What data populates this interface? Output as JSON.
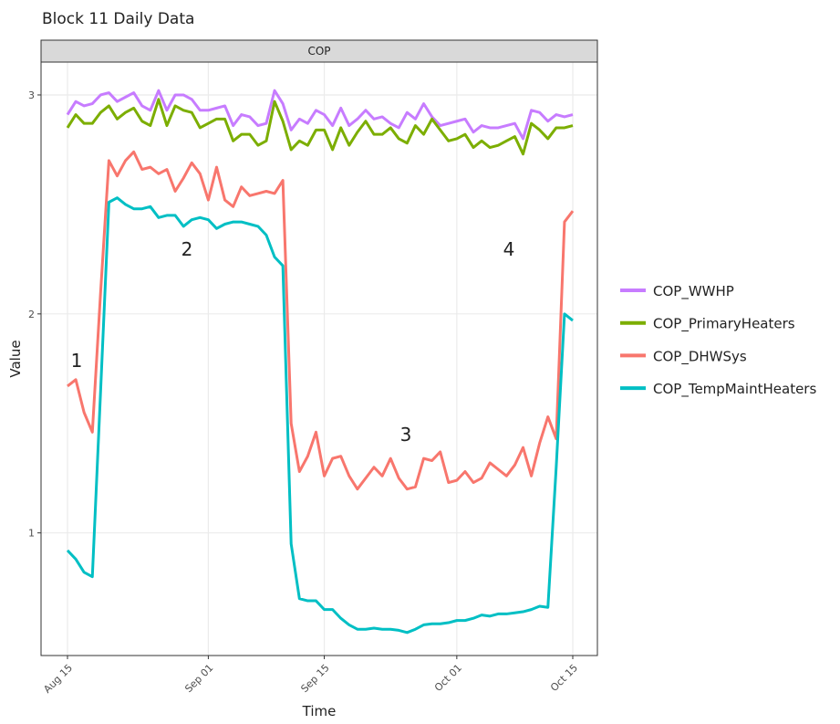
{
  "chart_data": {
    "type": "line",
    "title": "Block 11 Daily Data",
    "panel_label": "COP",
    "x_label": "Time",
    "y_label": "Value",
    "x": [
      "Aug 15",
      "Aug 16",
      "Aug 17",
      "Aug 18",
      "Aug 19",
      "Aug 20",
      "Aug 21",
      "Aug 22",
      "Aug 23",
      "Aug 24",
      "Aug 25",
      "Aug 26",
      "Aug 27",
      "Aug 28",
      "Aug 29",
      "Aug 30",
      "Aug 31",
      "Sep 01",
      "Sep 02",
      "Sep 03",
      "Sep 04",
      "Sep 05",
      "Sep 06",
      "Sep 07",
      "Sep 08",
      "Sep 09",
      "Sep 10",
      "Sep 11",
      "Sep 12",
      "Sep 13",
      "Sep 14",
      "Sep 15",
      "Sep 16",
      "Sep 17",
      "Sep 18",
      "Sep 19",
      "Sep 20",
      "Sep 21",
      "Sep 22",
      "Sep 23",
      "Sep 24",
      "Sep 25",
      "Sep 26",
      "Sep 27",
      "Sep 28",
      "Sep 29",
      "Sep 30",
      "Oct 01",
      "Oct 02",
      "Oct 03",
      "Oct 04",
      "Oct 05",
      "Oct 06",
      "Oct 07",
      "Oct 08",
      "Oct 09",
      "Oct 10",
      "Oct 11",
      "Oct 12",
      "Oct 13",
      "Oct 14",
      "Oct 15"
    ],
    "xticks": [
      "Aug 15",
      "Sep 01",
      "Sep 15",
      "Oct 01",
      "Oct 15"
    ],
    "ylim": [
      0.44,
      3.15
    ],
    "yticks": [
      1,
      2,
      3
    ],
    "grid": true,
    "legend": "right",
    "series": [
      {
        "name": "COP_WWHP",
        "color": "#c77cff",
        "values": [
          2.91,
          2.97,
          2.95,
          2.96,
          3.0,
          3.01,
          2.97,
          2.99,
          3.01,
          2.95,
          2.93,
          3.02,
          2.93,
          3.0,
          3.0,
          2.98,
          2.93,
          2.93,
          2.94,
          2.95,
          2.86,
          2.91,
          2.9,
          2.86,
          2.87,
          3.02,
          2.96,
          2.84,
          2.89,
          2.87,
          2.93,
          2.91,
          2.86,
          2.94,
          2.86,
          2.89,
          2.93,
          2.89,
          2.9,
          2.87,
          2.85,
          2.92,
          2.89,
          2.96,
          2.9,
          2.86,
          2.87,
          2.88,
          2.89,
          2.83,
          2.86,
          2.85,
          2.85,
          2.86,
          2.87,
          2.8,
          2.93,
          2.92,
          2.88,
          2.91,
          2.9,
          2.91
        ]
      },
      {
        "name": "COP_PrimaryHeaters",
        "color": "#7cae00",
        "values": [
          2.85,
          2.91,
          2.87,
          2.87,
          2.92,
          2.95,
          2.89,
          2.92,
          2.94,
          2.88,
          2.86,
          2.98,
          2.86,
          2.95,
          2.93,
          2.92,
          2.85,
          2.87,
          2.89,
          2.89,
          2.79,
          2.82,
          2.82,
          2.77,
          2.79,
          2.97,
          2.88,
          2.75,
          2.79,
          2.77,
          2.84,
          2.84,
          2.75,
          2.85,
          2.77,
          2.83,
          2.88,
          2.82,
          2.82,
          2.85,
          2.8,
          2.78,
          2.86,
          2.82,
          2.89,
          2.84,
          2.79,
          2.8,
          2.82,
          2.76,
          2.79,
          2.76,
          2.77,
          2.79,
          2.81,
          2.73,
          2.87,
          2.84,
          2.8,
          2.85,
          2.85,
          2.86
        ]
      },
      {
        "name": "COP_DHWSys",
        "color": "#f8766d",
        "values": [
          1.67,
          1.7,
          1.55,
          1.46,
          2.1,
          2.7,
          2.63,
          2.7,
          2.74,
          2.66,
          2.67,
          2.64,
          2.66,
          2.56,
          2.62,
          2.69,
          2.64,
          2.52,
          2.67,
          2.52,
          2.49,
          2.58,
          2.54,
          2.55,
          2.56,
          2.55,
          2.61,
          1.5,
          1.28,
          1.35,
          1.46,
          1.26,
          1.34,
          1.35,
          1.26,
          1.2,
          1.25,
          1.3,
          1.26,
          1.34,
          1.25,
          1.2,
          1.21,
          1.34,
          1.33,
          1.37,
          1.23,
          1.24,
          1.28,
          1.23,
          1.25,
          1.32,
          1.29,
          1.26,
          1.31,
          1.39,
          1.26,
          1.41,
          1.53,
          1.43,
          2.42,
          2.47
        ]
      },
      {
        "name": "COP_TempMaintHeaters",
        "color": "#00bfc4",
        "values": [
          0.92,
          0.88,
          0.82,
          0.8,
          1.65,
          2.51,
          2.53,
          2.5,
          2.48,
          2.48,
          2.49,
          2.44,
          2.45,
          2.45,
          2.4,
          2.43,
          2.44,
          2.43,
          2.39,
          2.41,
          2.42,
          2.42,
          2.41,
          2.4,
          2.36,
          2.26,
          2.22,
          0.95,
          0.7,
          0.69,
          0.69,
          0.65,
          0.65,
          0.61,
          0.58,
          0.56,
          0.56,
          0.565,
          0.56,
          0.56,
          0.555,
          0.545,
          0.56,
          0.58,
          0.585,
          0.585,
          0.59,
          0.6,
          0.6,
          0.61,
          0.625,
          0.62,
          0.63,
          0.63,
          0.635,
          0.64,
          0.65,
          0.665,
          0.66,
          1.3,
          2.0,
          1.97
        ]
      }
    ],
    "annotations": [
      "1",
      "2",
      "3",
      "4"
    ]
  }
}
